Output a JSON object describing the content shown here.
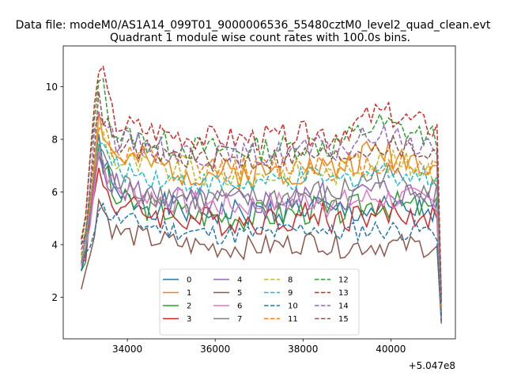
{
  "chart_data": {
    "type": "line",
    "suptitle": "Data file: modeM0/AS1A14_099T01_9000006536_55480cztM0_level2_quad_clean.evt",
    "title": "Quadrant 1 module wise count rates with 100.0s bins.",
    "xlabel": "",
    "ylabel": "",
    "x_offset_label": "+5.047e8",
    "x_offset": 504700000,
    "xlim": [
      32540,
      41470
    ],
    "ylim": [
      0.42,
      11.55
    ],
    "xticks": [
      34000,
      36000,
      38000,
      40000
    ],
    "xtick_labels": [
      "34000",
      "36000",
      "38000",
      "40000"
    ],
    "yticks": [
      2,
      4,
      6,
      8,
      10
    ],
    "ytick_labels": [
      "2",
      "4",
      "6",
      "8",
      "10"
    ],
    "x_range": {
      "start": 32950,
      "end": 41150,
      "step": 100
    },
    "legend_position": "lower center",
    "legend_columns": 4,
    "series": [
      {
        "name": "0",
        "color": "#1f77b4",
        "dash": "solid",
        "start": 3.0,
        "peak": 7.9,
        "level": 5.2,
        "late": 5.3,
        "end": 1.1,
        "noise": 0.55,
        "seed": 1
      },
      {
        "name": "1",
        "color": "#ff7f0e",
        "dash": "solid",
        "start": 3.2,
        "peak": 8.8,
        "level": 6.7,
        "late": 7.6,
        "end": 1.3,
        "noise": 0.6,
        "seed": 2
      },
      {
        "name": "2",
        "color": "#2ca02c",
        "dash": "solid",
        "start": 3.0,
        "peak": 7.5,
        "level": 5.1,
        "late": 5.6,
        "end": 1.2,
        "noise": 0.55,
        "seed": 3
      },
      {
        "name": "3",
        "color": "#d62728",
        "dash": "solid",
        "start": 3.4,
        "peak": 6.8,
        "level": 4.9,
        "late": 5.2,
        "end": 1.1,
        "noise": 0.55,
        "seed": 4
      },
      {
        "name": "4",
        "color": "#9467bd",
        "dash": "solid",
        "start": 3.3,
        "peak": 7.3,
        "level": 5.6,
        "late": 6.1,
        "end": 1.2,
        "noise": 0.55,
        "seed": 5
      },
      {
        "name": "5",
        "color": "#8c564b",
        "dash": "solid",
        "start": 2.3,
        "peak": 5.7,
        "level": 3.9,
        "late": 4.0,
        "end": 1.0,
        "noise": 0.45,
        "seed": 6
      },
      {
        "name": "6",
        "color": "#e377c2",
        "dash": "solid",
        "start": 3.2,
        "peak": 7.6,
        "level": 5.5,
        "late": 5.8,
        "end": 1.2,
        "noise": 0.5,
        "seed": 7
      },
      {
        "name": "7",
        "color": "#7f7f7f",
        "dash": "solid",
        "start": 3.3,
        "peak": 7.9,
        "level": 5.7,
        "late": 6.7,
        "end": 1.3,
        "noise": 0.55,
        "seed": 8
      },
      {
        "name": "8",
        "color": "#bcbd22",
        "dash": "dashed",
        "start": 3.5,
        "peak": 8.6,
        "level": 6.6,
        "late": 7.2,
        "end": 1.5,
        "noise": 0.5,
        "seed": 9
      },
      {
        "name": "9",
        "color": "#17becf",
        "dash": "dashed",
        "start": 3.6,
        "peak": 8.0,
        "level": 6.3,
        "late": 6.8,
        "end": 1.5,
        "noise": 0.45,
        "seed": 10
      },
      {
        "name": "10",
        "color": "#1f77b4",
        "dash": "dashed",
        "start": 3.0,
        "peak": 5.5,
        "level": 4.4,
        "late": 4.6,
        "end": 1.1,
        "noise": 0.4,
        "seed": 11
      },
      {
        "name": "11",
        "color": "#ff7f0e",
        "dash": "dashed",
        "start": 3.6,
        "peak": 8.7,
        "level": 6.9,
        "late": 7.1,
        "end": 1.6,
        "noise": 0.5,
        "seed": 12
      },
      {
        "name": "12",
        "color": "#2ca02c",
        "dash": "dashed",
        "start": 4.0,
        "peak": 10.6,
        "level": 7.6,
        "late": 8.6,
        "end": 1.9,
        "noise": 0.5,
        "seed": 13
      },
      {
        "name": "13",
        "color": "#d62728",
        "dash": "dashed",
        "start": 4.2,
        "peak": 11.0,
        "level": 8.0,
        "late": 9.0,
        "end": 2.1,
        "noise": 0.5,
        "seed": 14
      },
      {
        "name": "14",
        "color": "#9467bd",
        "dash": "dashed",
        "start": 3.8,
        "peak": 9.5,
        "level": 7.4,
        "late": 8.2,
        "end": 1.8,
        "noise": 0.5,
        "seed": 15
      },
      {
        "name": "15",
        "color": "#8c564b",
        "dash": "dashed",
        "start": 4.0,
        "peak": 9.4,
        "level": 7.2,
        "late": 7.8,
        "end": 1.8,
        "noise": 0.45,
        "seed": 16
      }
    ]
  }
}
